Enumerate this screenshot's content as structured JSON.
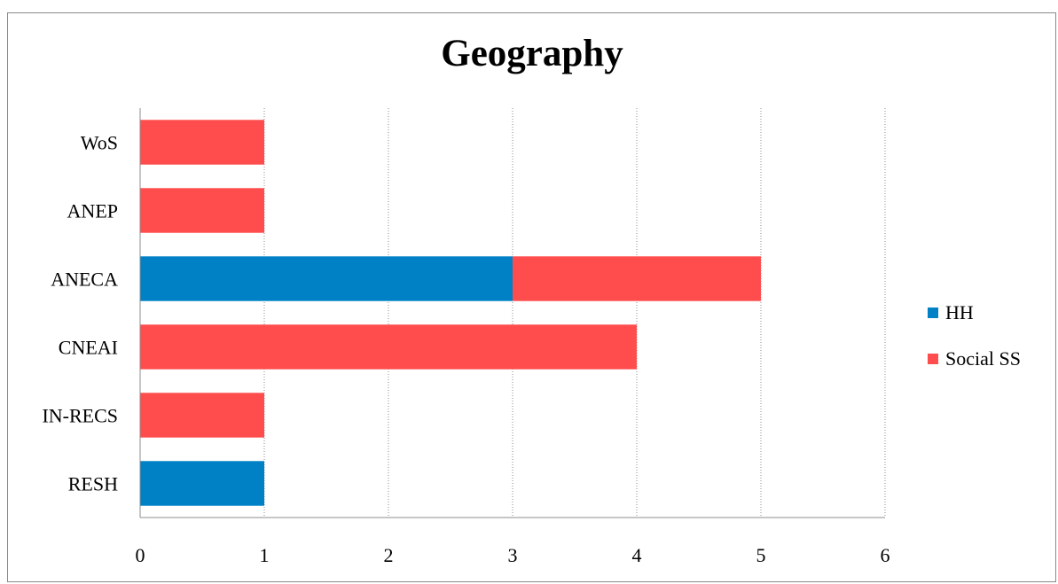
{
  "chart_data": {
    "type": "bar",
    "orientation": "horizontal",
    "stacked": true,
    "title": "Geography",
    "xlabel": "",
    "ylabel": "",
    "categories": [
      "WoS",
      "ANEP",
      "ANECA",
      "CNEAI",
      "IN-RECS",
      "RESH"
    ],
    "series": [
      {
        "name": "HH",
        "color": "#0081c5",
        "values": [
          0,
          0,
          3,
          0,
          0,
          1
        ]
      },
      {
        "name": "Social SS",
        "color": "#ff4d4d",
        "values": [
          1,
          1,
          2,
          4,
          1,
          0
        ]
      }
    ],
    "xlim": [
      0,
      6
    ],
    "xticks": [
      "0",
      "1",
      "2",
      "3",
      "4",
      "5",
      "6"
    ],
    "grid": "vertical-dotted",
    "legend_position": "right"
  }
}
